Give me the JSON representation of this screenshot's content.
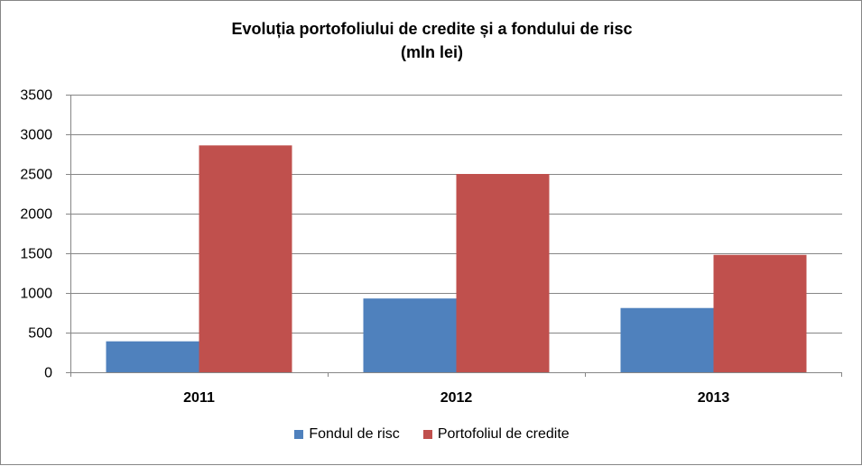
{
  "chart_data": {
    "type": "bar",
    "title": "Evoluția portofoliului de credite și a fondului de risc",
    "subtitle": "(mln lei)",
    "categories": [
      "2011",
      "2012",
      "2013"
    ],
    "series": [
      {
        "name": "Fondul de risc",
        "values": [
          390,
          930,
          810
        ],
        "color": "#4F81BD"
      },
      {
        "name": "Portofoliul de credite",
        "values": [
          2860,
          2500,
          1480
        ],
        "color": "#C0504D"
      }
    ],
    "ylim": [
      0,
      3500
    ],
    "yticks": [
      "0",
      "500",
      "1000",
      "1500",
      "2000",
      "2500",
      "3000",
      "3500"
    ],
    "grid": true,
    "legend_position": "bottom"
  }
}
